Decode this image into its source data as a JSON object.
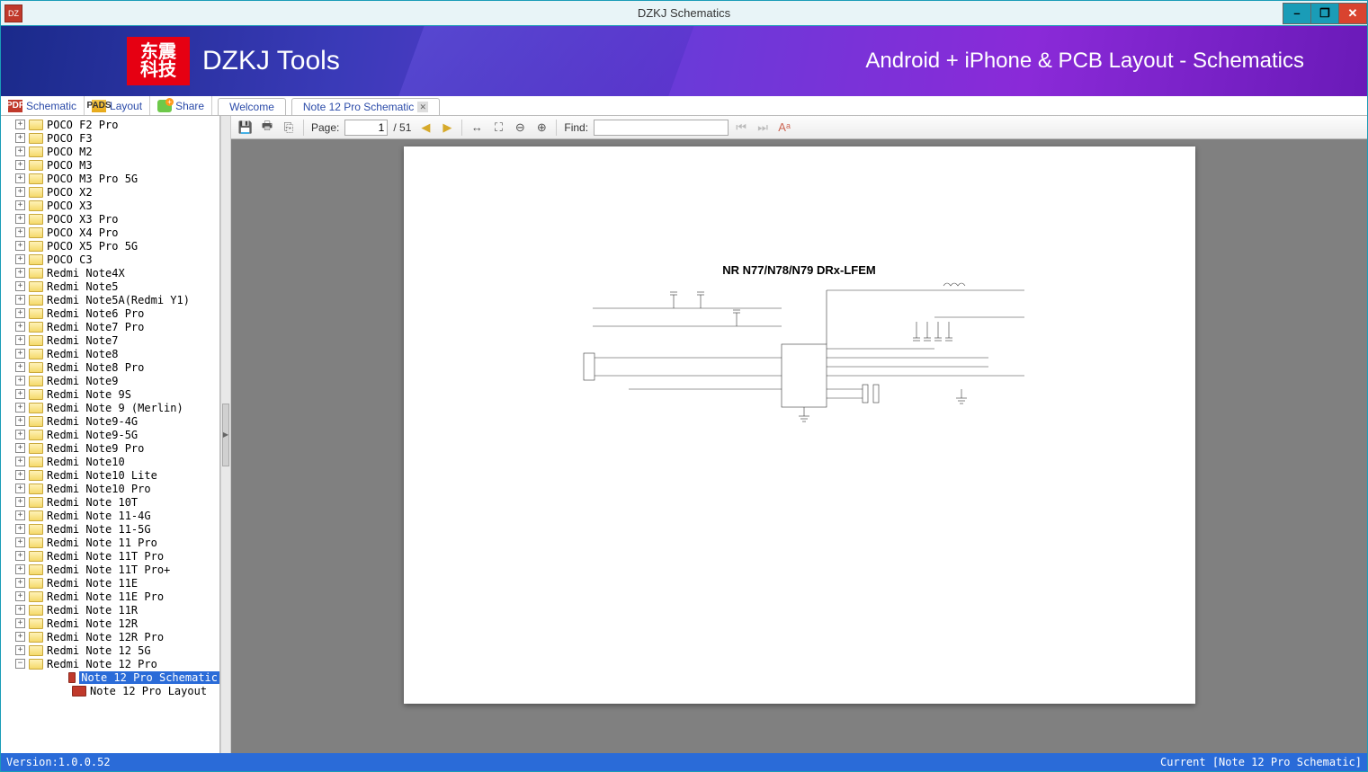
{
  "window": {
    "title": "DZKJ Schematics",
    "icon_text": "DZ"
  },
  "banner": {
    "logo_line1": "东震",
    "logo_line2": "科技",
    "brand": "DZKJ Tools",
    "tagline": "Android + iPhone & PCB Layout - Schematics"
  },
  "navtabs": {
    "schematic": "Schematic",
    "layout": "Layout",
    "share": "Share"
  },
  "doctabs": {
    "welcome": "Welcome",
    "current": "Note 12 Pro Schematic"
  },
  "toolbar": {
    "page_label": "Page:",
    "page_current": "1",
    "page_total": "/ 51",
    "find_label": "Find:",
    "find_value": ""
  },
  "tree": {
    "items": [
      {
        "label": "POCO F2 Pro",
        "expanded": false
      },
      {
        "label": "POCO F3",
        "expanded": false
      },
      {
        "label": "POCO M2",
        "expanded": false
      },
      {
        "label": "POCO M3",
        "expanded": false
      },
      {
        "label": "POCO M3 Pro 5G",
        "expanded": false
      },
      {
        "label": "POCO X2",
        "expanded": false
      },
      {
        "label": "POCO X3",
        "expanded": false
      },
      {
        "label": "POCO X3 Pro",
        "expanded": false
      },
      {
        "label": "POCO X4 Pro",
        "expanded": false
      },
      {
        "label": "POCO X5 Pro 5G",
        "expanded": false
      },
      {
        "label": "POCO C3",
        "expanded": false
      },
      {
        "label": "Redmi Note4X",
        "expanded": false
      },
      {
        "label": "Redmi Note5",
        "expanded": false
      },
      {
        "label": "Redmi Note5A(Redmi Y1)",
        "expanded": false
      },
      {
        "label": "Redmi Note6 Pro",
        "expanded": false
      },
      {
        "label": "Redmi Note7 Pro",
        "expanded": false
      },
      {
        "label": "Redmi Note7",
        "expanded": false
      },
      {
        "label": "Redmi Note8",
        "expanded": false
      },
      {
        "label": "Redmi Note8 Pro",
        "expanded": false
      },
      {
        "label": "Redmi Note9",
        "expanded": false
      },
      {
        "label": "Redmi Note 9S",
        "expanded": false
      },
      {
        "label": "Redmi Note 9 (Merlin)",
        "expanded": false
      },
      {
        "label": "Redmi Note9-4G",
        "expanded": false
      },
      {
        "label": "Redmi Note9-5G",
        "expanded": false
      },
      {
        "label": "Redmi Note9 Pro",
        "expanded": false
      },
      {
        "label": "Redmi Note10",
        "expanded": false
      },
      {
        "label": "Redmi Note10 Lite",
        "expanded": false
      },
      {
        "label": "Redmi Note10 Pro",
        "expanded": false
      },
      {
        "label": "Redmi Note 10T",
        "expanded": false
      },
      {
        "label": "Redmi Note 11-4G",
        "expanded": false
      },
      {
        "label": "Redmi Note 11-5G",
        "expanded": false
      },
      {
        "label": "Redmi Note 11 Pro",
        "expanded": false
      },
      {
        "label": "Redmi Note 11T Pro",
        "expanded": false
      },
      {
        "label": "Redmi Note 11T Pro+",
        "expanded": false
      },
      {
        "label": "Redmi Note 11E",
        "expanded": false
      },
      {
        "label": "Redmi Note 11E Pro",
        "expanded": false
      },
      {
        "label": "Redmi Note 11R",
        "expanded": false
      },
      {
        "label": "Redmi Note 12R",
        "expanded": false
      },
      {
        "label": "Redmi Note 12R Pro",
        "expanded": false
      },
      {
        "label": "Redmi Note 12 5G",
        "expanded": false
      },
      {
        "label": "Redmi Note 12 Pro",
        "expanded": true
      }
    ],
    "children": [
      {
        "label": "Note 12 Pro Schematic",
        "selected": true
      },
      {
        "label": "Note 12 Pro Layout",
        "selected": false
      }
    ]
  },
  "schematic": {
    "title": "NR N77/N78/N79 DRx-LFEM"
  },
  "statusbar": {
    "version": "Version:1.0.0.52",
    "current": "Current [Note 12 Pro Schematic]"
  },
  "colors": {
    "titlebar_bg": "#e8f4f7",
    "accent": "#1a9cb7",
    "close_bg": "#d9432f",
    "banner_start": "#1a2a8a",
    "banner_end": "#6a1ab8",
    "logo_bg": "#e60012",
    "link": "#2a4aa8",
    "selection": "#2a6bd8",
    "status_bg": "#2a6bd8",
    "canvas_bg": "#808080",
    "folder_bg": "#f5d96a",
    "pdf_bg": "#c0392b"
  }
}
